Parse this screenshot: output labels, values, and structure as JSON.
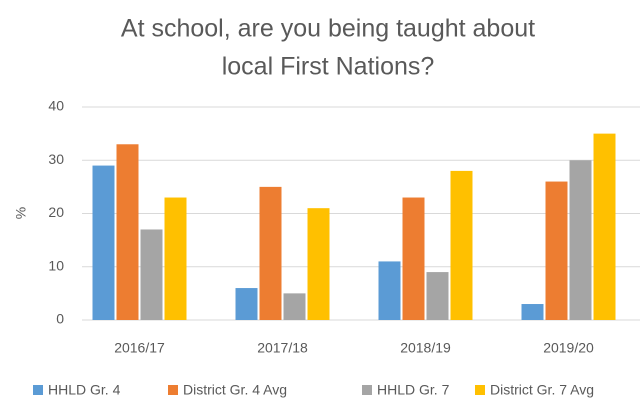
{
  "chart_data": {
    "type": "bar",
    "title": [
      "At school, are you being taught about",
      "local First Nations?"
    ],
    "y_label": "%",
    "categories": [
      "2016/17",
      "2017/18",
      "2018/19",
      "2019/20"
    ],
    "series": [
      {
        "name": "HHLD Gr. 4",
        "color": "#5b9bd5",
        "values": [
          29,
          6,
          11,
          3
        ]
      },
      {
        "name": "District Gr. 4 Avg",
        "color": "#ed7d31",
        "values": [
          33,
          25,
          23,
          26
        ]
      },
      {
        "name": "HHLD Gr. 7",
        "color": "#a5a5a5",
        "values": [
          17,
          5,
          9,
          30
        ]
      },
      {
        "name": "District Gr. 7 Avg",
        "color": "#ffc000",
        "values": [
          23,
          21,
          28,
          35
        ]
      }
    ],
    "ylim": [
      0,
      40
    ],
    "yticks": [
      0,
      10,
      20,
      30,
      40
    ],
    "grid": true,
    "legend": "bottom"
  }
}
